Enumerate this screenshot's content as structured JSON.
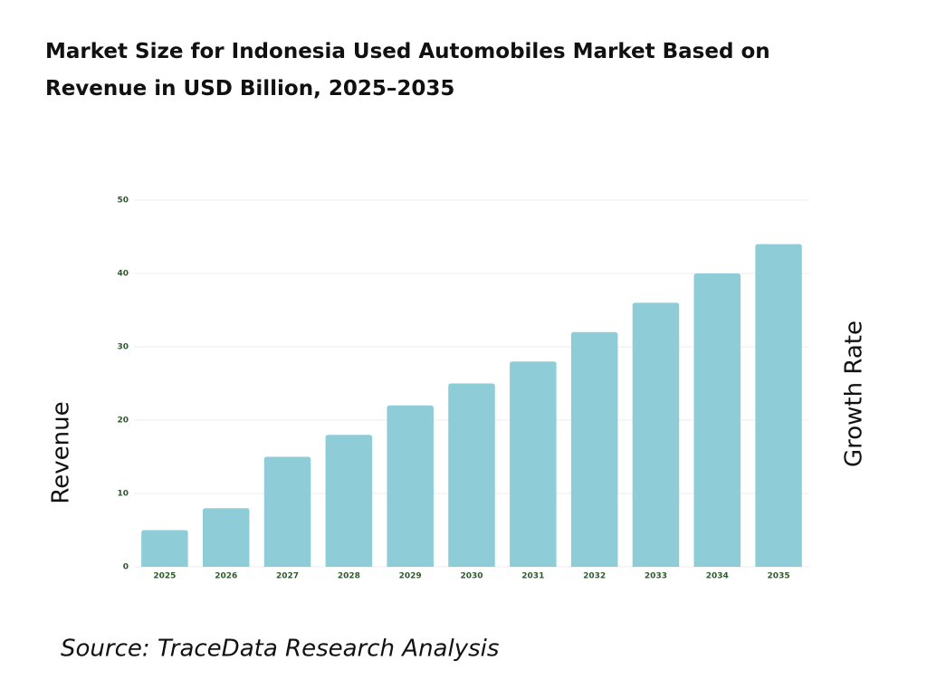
{
  "chart_data": {
    "type": "bar",
    "title": "Market Size for Indonesia Used Automobiles Market Based on Revenue in USD Billion, 2025–2035",
    "y_label": "Revenue",
    "y2_label": "Growth Rate",
    "source": "Source: TraceData Research Analysis",
    "categories": [
      "2025",
      "2026",
      "2027",
      "2028",
      "2029",
      "2030",
      "2031",
      "2032",
      "2033",
      "2034",
      "2035"
    ],
    "values": [
      5,
      8,
      15,
      18,
      22,
      25,
      28,
      32,
      36,
      40,
      44
    ],
    "color": "#8ecdd8",
    "ylim": [
      0,
      50
    ],
    "yticks": [
      0,
      10,
      20,
      30,
      40,
      50
    ],
    "grid": true
  }
}
